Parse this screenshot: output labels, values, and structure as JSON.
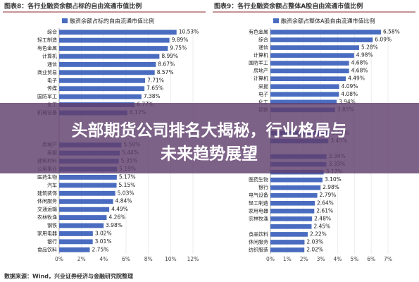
{
  "chart_data": [
    {
      "type": "hbar",
      "title": "图表8：各行业融资余额占标的自由流通市值比例",
      "series": [
        {
          "name": "融资余额占标的自由流通市值比例",
          "color": "#4a6cc0"
        }
      ],
      "categories": [
        "综合",
        "轻工制造",
        "有色金属",
        "计算机",
        "通信",
        "商业贸易",
        "电子",
        "传媒",
        "国防军工",
        "化工",
        "机械设备",
        null,
        null,
        null,
        "房地产",
        "采掘",
        "建筑材料",
        "公用事业",
        "医药生物",
        "汽车",
        "建筑装饰",
        "休闲服务",
        "交通运输",
        "农林牧渔",
        "钢铁",
        "家用电器",
        "银行",
        "食品饮料"
      ],
      "values": [
        10.53,
        9.89,
        9.75,
        8.99,
        8.67,
        8.57,
        7.71,
        7.65,
        7.38,
        6.77,
        6.12,
        null,
        null,
        null,
        5.59,
        5.44,
        5.35,
        5.19,
        5.17,
        5.15,
        5.03,
        4.84,
        4.49,
        4.26,
        3.98,
        3.02,
        3.01,
        2.75
      ],
      "value_labels": [
        "10.53%",
        "9.89%",
        "9.75%",
        "8.99%",
        "8.67%",
        "8.57%",
        "7.71%",
        "7.65%",
        "7.38%",
        "6.77%",
        "6.12%",
        null,
        null,
        null,
        "5.59%",
        "5.44%",
        "5.35%",
        "5.19%",
        "5.17%",
        "5.15%",
        "5.03%",
        "4.84%",
        "4.49%",
        "4.26%",
        "3.98%",
        "3.02%",
        "3.01%",
        "2.75%"
      ],
      "xlim": [
        0,
        12
      ],
      "xticks": [
        {
          "value": 0,
          "label": "0%"
        },
        {
          "value": 2,
          "label": "2%"
        },
        {
          "value": 4,
          "label": "4%"
        },
        {
          "value": 6,
          "label": "6%"
        },
        {
          "value": 8,
          "label": "8%"
        },
        {
          "value": 10,
          "label": "10%"
        },
        {
          "value": 12,
          "label": "12%"
        }
      ]
    },
    {
      "type": "hbar",
      "title": "图表9：各行业融资余额占整体A股自由流通市值比例",
      "series": [
        {
          "name": "融资余额占整体A股自由流通市值比例",
          "color": "#4a6cc0"
        }
      ],
      "categories": [
        "有色金属",
        "综合",
        "通信",
        "计算机",
        "国防军工",
        "房地产",
        "计算机",
        "采掘",
        "电子",
        "化工",
        "钢铁",
        null,
        null,
        null,
        null,
        null,
        null,
        null,
        null,
        "医药生物",
        "银行",
        "电气设备",
        "轻工制造",
        "家用电器",
        "农林牧渔",
        null,
        "食品饮料",
        "休闲服务",
        "纺织服装"
      ],
      "values": [
        6.58,
        6.09,
        5.28,
        4.98,
        4.68,
        4.68,
        4.49,
        4.09,
        4.08,
        3.94,
        3.85,
        null,
        null,
        3.55,
        3.45,
        null,
        3.34,
        3.33,
        3.17,
        3.1,
        2.98,
        2.79,
        2.64,
        2.61,
        2.48,
        2.45,
        2.22,
        2.03,
        2.02
      ],
      "value_labels": [
        "6.58%",
        "6.09%",
        "5.28%",
        "4.98%",
        "4.68%",
        "4.68%",
        "4.49%",
        "4.09%",
        "4.08%",
        "3.94%",
        "3.85%",
        null,
        null,
        "3.55%",
        "3.45%",
        null,
        "3.34%",
        "3.33%",
        "3.17%",
        "3.10%",
        "2.98%",
        "2.79%",
        "2.64%",
        "2.61%",
        "2.48%",
        "2.45%",
        "2.22%",
        "2.03%",
        "2.02%"
      ],
      "xlim": [
        0,
        7
      ],
      "xticks": [
        {
          "value": 0,
          "label": "0%"
        },
        {
          "value": 1,
          "label": "1%"
        },
        {
          "value": 2,
          "label": "2%"
        },
        {
          "value": 3,
          "label": "3%"
        },
        {
          "value": 4,
          "label": "4%"
        },
        {
          "value": 5,
          "label": "5%"
        },
        {
          "value": 6,
          "label": "6%"
        },
        {
          "value": 7,
          "label": "7%"
        }
      ]
    }
  ],
  "source": "数据来源：Wind，兴业证券经济与金融研究院整理",
  "overlay": {
    "lines": [
      "头部期货公司排名大揭秘，行业格局与",
      "未来趋势展望"
    ]
  }
}
